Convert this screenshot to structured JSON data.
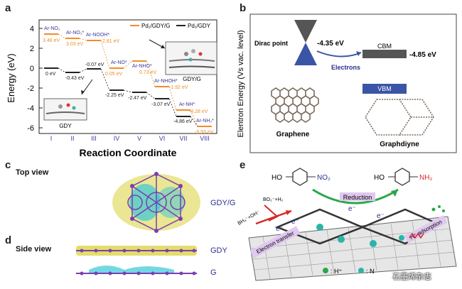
{
  "panels": {
    "a": "a",
    "b": "b",
    "c": "c",
    "d": "d",
    "e": "e"
  },
  "panel_a": {
    "ylabel": "Energy (eV)",
    "xlabel": "Reaction Coordinate",
    "legend": [
      "Pd₁/GDY/G",
      "Pd₁/GDY"
    ],
    "yticks": [
      "4",
      "2",
      "0",
      "-2",
      "-4",
      "-6"
    ],
    "steps": [
      "I",
      "II",
      "III",
      "IV",
      "V",
      "VI",
      "VII",
      "VIII"
    ],
    "upper_species": [
      "Ar-NO₂",
      "Ar-NO₂*",
      "Ar-NOOH*",
      "Ar-NO*",
      "Ar-NHO*",
      "Ar-NHOH*",
      "Ar-NH*",
      "Ar-NH₂*"
    ],
    "upper_energies": [
      "3.46 eV",
      "3.03 eV",
      "2.81 eV",
      "0.05 eV",
      "0.73 eV",
      "-1.92 eV",
      "-4.28 eV",
      "-5.93 eV"
    ],
    "lower_energies": [
      "0 eV",
      "-0.43 eV",
      "-0.07 eV",
      "-2.25 eV",
      "-2.47 eV",
      "-3.07 eV",
      "-4.86 eV"
    ],
    "inset_gdyg": "GDY/G",
    "inset_gdy": "GDY"
  },
  "panel_b": {
    "ylabel": "Elentron Energy (Vs vac. level)",
    "dirac": "Dirac point",
    "dirac_energy": "-4.35 eV",
    "cbm": "CBM",
    "cbm_energy": "-4.85 eV",
    "vbm": "VBM",
    "electrons": "Electrons",
    "graphene": "Graphene",
    "graphdiyne": "Graphdiyne"
  },
  "panel_c": {
    "view": "Top view",
    "label": "GDY/G"
  },
  "panel_d": {
    "view": "Side view",
    "label_gdy": "GDY",
    "label_g": "G"
  },
  "panel_e": {
    "reactant": "HO",
    "no2": "NO₂",
    "product": "HO",
    "nh2": "NH₂",
    "reduction": "Reduction",
    "bh4": "BH₄⁻+OH⁻",
    "bo2": "BO₂⁻+H₂",
    "electron": "e⁻",
    "electron_transfer": "Electron transfer",
    "h_adsorption": "H⁺ adsorption",
    "legend_h": ": H⁺",
    "legend_n": ": N"
  },
  "watermark": "石墨烯杂志",
  "colors": {
    "orange": "#f28c28",
    "black": "#222222",
    "blue": "#2a2f8f",
    "yellow": "#d9d23a",
    "cyan": "#38c8d8",
    "purple": "#7a3fb0"
  }
}
